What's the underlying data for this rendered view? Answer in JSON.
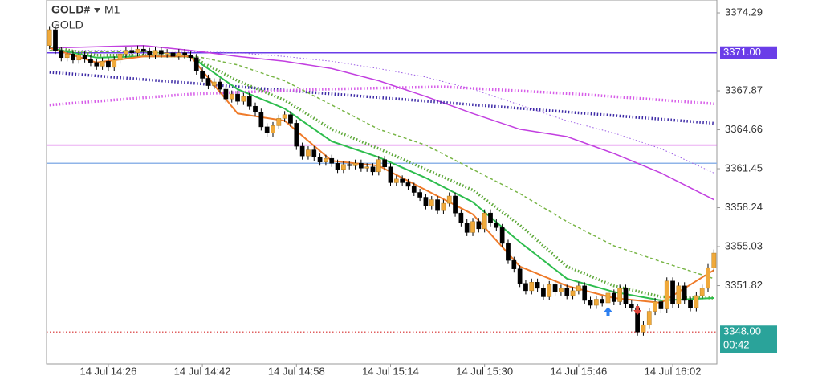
{
  "chart_data": {
    "type": "candlestick",
    "title": "GOLD#",
    "timeframe": "M1",
    "subtitle": "GOLD",
    "categories": [
      null,
      null,
      null,
      null,
      null,
      null,
      null,
      null,
      null,
      null,
      "14 Jul 14:26",
      null,
      null,
      null,
      null,
      null,
      null,
      null,
      null,
      null,
      null,
      null,
      null,
      null,
      null,
      null,
      "14 Jul 14:42",
      null,
      null,
      null,
      null,
      null,
      null,
      null,
      null,
      null,
      null,
      null,
      null,
      null,
      null,
      null,
      "14 Jul 14:58",
      null,
      null,
      null,
      null,
      null,
      null,
      null,
      null,
      null,
      null,
      null,
      null,
      null,
      null,
      null,
      "14 Jul 15:14",
      null,
      null,
      null,
      null,
      null,
      null,
      null,
      null,
      null,
      null,
      null,
      null,
      null,
      null,
      null,
      "14 Jul 15:30",
      null,
      null,
      null,
      null,
      null,
      null,
      null,
      null,
      null,
      null,
      null,
      null,
      null,
      null,
      null,
      "14 Jul 15:46",
      null,
      null,
      null,
      null,
      null,
      null,
      null,
      null,
      null,
      null,
      null,
      null,
      null,
      null,
      null,
      "14 Jul 16:02",
      null,
      null,
      null,
      null,
      null,
      null,
      null
    ],
    "open": [
      3371.6,
      3372.9,
      3371.2,
      3370.6,
      3370.9,
      3370.4,
      3370.8,
      3370.5,
      3370.2,
      3369.9,
      3370.3,
      3369.8,
      3370.4,
      3370.9,
      3371.2,
      3371.0,
      3371.3,
      3371.1,
      3370.8,
      3371.2,
      3370.9,
      3371.0,
      3370.7,
      3371.0,
      3370.8,
      3370.6,
      3369.5,
      3368.9,
      3368.3,
      3368.6,
      3368.0,
      3367.2,
      3367.6,
      3367.0,
      3367.4,
      3366.6,
      3366.1,
      3364.9,
      3364.4,
      3365.0,
      3365.6,
      3365.9,
      3365.2,
      3363.3,
      3362.5,
      3363.0,
      3362.4,
      3362.0,
      3362.3,
      3361.9,
      3361.4,
      3361.8,
      3361.7,
      3361.9,
      3361.5,
      3361.6,
      3361.2,
      3362.2,
      3361.6,
      3360.3,
      3360.6,
      3360.3,
      3360.0,
      3359.5,
      3359.1,
      3358.4,
      3358.9,
      3358.0,
      3358.6,
      3359.2,
      3357.8,
      3357.0,
      3356.2,
      3357.1,
      3356.5,
      3357.8,
      3357.0,
      3356.6,
      3355.3,
      3353.9,
      3353.2,
      3352.0,
      3351.4,
      3352.1,
      3351.6,
      3350.9,
      3351.9,
      3351.3,
      3351.6,
      3351.0,
      3351.4,
      3351.8,
      3350.6,
      3350.2,
      3350.7,
      3350.4,
      3351.2,
      3350.5,
      3351.6,
      3350.3,
      3350.0,
      3348.0,
      3348.6,
      3349.7,
      3350.5,
      3349.9,
      3352.2,
      3350.3,
      3351.8,
      3350.6,
      3350.0,
      3351.0,
      3351.6,
      3353.3
    ],
    "high": [
      3373.2,
      3373.2,
      3371.5,
      3371.2,
      3371.2,
      3371.1,
      3371.1,
      3370.8,
      3370.5,
      3370.6,
      3370.6,
      3370.7,
      3371.2,
      3371.5,
      3371.5,
      3371.6,
      3371.6,
      3371.4,
      3371.5,
      3371.5,
      3371.3,
      3371.3,
      3371.3,
      3371.3,
      3371.1,
      3370.9,
      3369.8,
      3369.2,
      3368.9,
      3368.9,
      3368.3,
      3367.9,
      3367.9,
      3367.7,
      3367.7,
      3366.9,
      3366.4,
      3365.2,
      3365.3,
      3365.9,
      3366.2,
      3366.2,
      3365.5,
      3363.6,
      3363.3,
      3363.3,
      3362.7,
      3362.6,
      3362.6,
      3362.2,
      3362.1,
      3362.1,
      3362.2,
      3362.2,
      3361.9,
      3361.9,
      3362.5,
      3362.5,
      3361.9,
      3360.9,
      3360.9,
      3360.6,
      3360.3,
      3359.8,
      3359.4,
      3359.2,
      3359.2,
      3358.9,
      3359.5,
      3359.5,
      3358.1,
      3357.3,
      3357.4,
      3357.4,
      3358.1,
      3358.1,
      3357.3,
      3356.9,
      3355.6,
      3354.2,
      3353.5,
      3352.3,
      3352.4,
      3352.4,
      3351.9,
      3352.2,
      3352.2,
      3351.9,
      3351.9,
      3351.7,
      3352.1,
      3352.1,
      3350.9,
      3351.0,
      3351.0,
      3351.5,
      3351.5,
      3351.9,
      3351.9,
      3350.6,
      3350.3,
      3348.9,
      3350.0,
      3350.8,
      3350.8,
      3352.5,
      3352.5,
      3352.1,
      3352.1,
      3350.9,
      3351.3,
      3351.9,
      3353.6,
      3354.8
    ],
    "low": [
      3371.3,
      3370.9,
      3370.3,
      3370.3,
      3370.1,
      3370.1,
      3370.2,
      3369.9,
      3369.6,
      3369.6,
      3369.5,
      3369.5,
      3370.1,
      3370.6,
      3370.7,
      3370.7,
      3370.8,
      3370.5,
      3370.5,
      3370.6,
      3370.6,
      3370.4,
      3370.4,
      3370.5,
      3370.3,
      3369.2,
      3368.6,
      3368.0,
      3368.0,
      3367.7,
      3366.9,
      3366.9,
      3366.7,
      3366.7,
      3366.3,
      3365.8,
      3364.6,
      3364.1,
      3364.1,
      3364.7,
      3365.3,
      3364.9,
      3363.0,
      3362.2,
      3362.2,
      3362.1,
      3361.7,
      3361.7,
      3361.6,
      3361.1,
      3361.1,
      3361.4,
      3361.4,
      3361.2,
      3361.2,
      3360.9,
      3360.9,
      3361.3,
      3360.0,
      3360.0,
      3360.0,
      3359.7,
      3359.2,
      3358.8,
      3358.1,
      3358.1,
      3357.7,
      3357.7,
      3358.3,
      3357.5,
      3356.7,
      3355.9,
      3355.9,
      3356.2,
      3356.2,
      3356.7,
      3356.3,
      3355.0,
      3353.6,
      3352.9,
      3351.7,
      3351.1,
      3351.1,
      3351.3,
      3350.6,
      3350.6,
      3351.0,
      3351.0,
      3350.7,
      3350.7,
      3351.1,
      3350.3,
      3349.9,
      3349.9,
      3350.1,
      3350.1,
      3350.2,
      3350.2,
      3350.0,
      3349.7,
      3347.7,
      3347.7,
      3348.3,
      3349.4,
      3349.6,
      3349.6,
      3350.0,
      3350.0,
      3350.3,
      3349.7,
      3349.7,
      3350.7,
      3351.3,
      3353.0
    ],
    "close": [
      3372.9,
      3371.2,
      3370.6,
      3370.9,
      3370.4,
      3370.8,
      3370.5,
      3370.2,
      3369.9,
      3370.3,
      3369.8,
      3370.4,
      3370.9,
      3371.2,
      3371.0,
      3371.3,
      3371.1,
      3370.8,
      3371.2,
      3370.9,
      3371.0,
      3370.7,
      3371.0,
      3370.8,
      3370.6,
      3369.5,
      3368.9,
      3368.3,
      3368.6,
      3368.0,
      3367.2,
      3367.6,
      3367.0,
      3367.4,
      3366.6,
      3366.1,
      3364.9,
      3364.4,
      3365.0,
      3365.6,
      3365.9,
      3365.2,
      3363.3,
      3362.5,
      3363.0,
      3362.4,
      3362.0,
      3362.3,
      3361.9,
      3361.4,
      3361.8,
      3361.7,
      3361.9,
      3361.5,
      3361.6,
      3361.2,
      3362.2,
      3361.6,
      3360.3,
      3360.6,
      3360.3,
      3360.0,
      3359.5,
      3359.1,
      3358.4,
      3358.9,
      3358.0,
      3358.6,
      3359.2,
      3357.8,
      3357.0,
      3356.2,
      3357.1,
      3356.5,
      3357.8,
      3357.0,
      3356.6,
      3355.3,
      3353.9,
      3353.2,
      3352.0,
      3351.4,
      3352.1,
      3351.6,
      3350.9,
      3351.9,
      3351.3,
      3351.6,
      3351.0,
      3351.4,
      3351.8,
      3350.6,
      3350.2,
      3350.7,
      3350.4,
      3351.2,
      3350.5,
      3351.6,
      3350.3,
      3350.0,
      3348.0,
      3348.6,
      3349.7,
      3350.5,
      3349.9,
      3352.2,
      3350.3,
      3351.8,
      3350.6,
      3350.0,
      3351.0,
      3351.6,
      3353.3,
      3354.5
    ],
    "up_color": "#f0a93a",
    "down_color": "#000000",
    "ylim": [
      3345.37,
      3375.35
    ],
    "yticks": [
      3374.29,
      3367.87,
      3364.66,
      3361.45,
      3358.24,
      3355.03,
      3351.82
    ],
    "indicators": [
      {
        "color": "#9b5de5",
        "style": "dotted",
        "width": 1,
        "x": [
          0,
          8,
          16,
          24,
          32,
          40,
          48,
          56,
          64,
          72,
          80,
          88,
          96,
          104,
          113
        ],
        "values": [
          3371.2,
          3371.2,
          3371.2,
          3371.1,
          3371.0,
          3370.7,
          3370.3,
          3369.7,
          3369.0,
          3368.0,
          3366.7,
          3365.4,
          3364.4,
          3363.1,
          3361.1
        ]
      },
      {
        "color": "#c23fe0",
        "style": "solid",
        "width": 1.5,
        "x": [
          0,
          8,
          16,
          24,
          32,
          40,
          48,
          56,
          64,
          72,
          80,
          88,
          96,
          104,
          113
        ],
        "values": [
          3371.4,
          3371.5,
          3371.6,
          3371.2,
          3370.7,
          3370.3,
          3369.7,
          3368.7,
          3367.4,
          3366.0,
          3364.7,
          3364.1,
          3362.7,
          3361.1,
          3358.9
        ]
      },
      {
        "color": "#3d2aa6",
        "style": "dotted",
        "width": 3.5,
        "x": [
          0,
          113
        ],
        "values": [
          3369.4,
          3365.2
        ]
      },
      {
        "color": "#d65ce8",
        "style": "dotted",
        "width": 3.5,
        "x": [
          0,
          24,
          46,
          67,
          90,
          113
        ],
        "values": [
          3366.7,
          3367.6,
          3368.0,
          3368.2,
          3367.6,
          3366.8
        ]
      },
      {
        "color": "#7ab648",
        "style": "dashed",
        "width": 1.5,
        "x": [
          0,
          8,
          16,
          24,
          32,
          40,
          48,
          56,
          64,
          72,
          80,
          88,
          96,
          104,
          113
        ],
        "values": [
          3371.2,
          3371.1,
          3371.1,
          3370.8,
          3370.0,
          3368.7,
          3366.7,
          3364.7,
          3363.4,
          3361.4,
          3359.4,
          3357.1,
          3355.1,
          3353.8,
          3352.4
        ]
      },
      {
        "color": "#5ea83a",
        "style": "dotted",
        "width": 3.5,
        "x": [
          0,
          8,
          16,
          24,
          32,
          40,
          48,
          56,
          64,
          72,
          80,
          88,
          96,
          104,
          113
        ],
        "values": [
          3371.5,
          3370.8,
          3370.8,
          3370.7,
          3368.7,
          3367.1,
          3364.7,
          3363.1,
          3361.4,
          3359.7,
          3356.8,
          3353.4,
          3351.8,
          3350.9,
          3350.8
        ]
      },
      {
        "color": "#2ebd4e",
        "style": "solid",
        "width": 2,
        "x": [
          0,
          8,
          16,
          24,
          32,
          40,
          48,
          56,
          64,
          72,
          80,
          88,
          96,
          104,
          113
        ],
        "values": [
          3371.4,
          3370.6,
          3370.7,
          3370.7,
          3368.0,
          3366.4,
          3363.7,
          3362.4,
          3360.7,
          3358.7,
          3355.4,
          3352.4,
          3351.3,
          3350.6,
          3350.8
        ]
      },
      {
        "color": "#ef7b2a",
        "style": "solid",
        "width": 2,
        "x": [
          0,
          8,
          16,
          24,
          32,
          40,
          48,
          56,
          64,
          72,
          80,
          88,
          96,
          104,
          113
        ],
        "values": [
          3371.4,
          3370.2,
          3370.7,
          3370.7,
          3366.0,
          3365.4,
          3362.1,
          3361.7,
          3359.7,
          3357.7,
          3353.4,
          3351.8,
          3350.8,
          3350.4,
          3353.1
        ]
      }
    ],
    "levels": [
      {
        "value": 3371,
        "label": "3371.00",
        "color": "#6a3de8",
        "style": "solid"
      },
      {
        "value": 3363.4,
        "color": "#d65ce8",
        "style": "solid"
      },
      {
        "value": 3361.9,
        "color": "#8fb4e8",
        "style": "solid"
      },
      {
        "value": 3348,
        "label": "3348.00",
        "color": "#e06060",
        "style": "dotted",
        "box_color": "#2aa39a"
      }
    ],
    "countdown": "00:42"
  }
}
